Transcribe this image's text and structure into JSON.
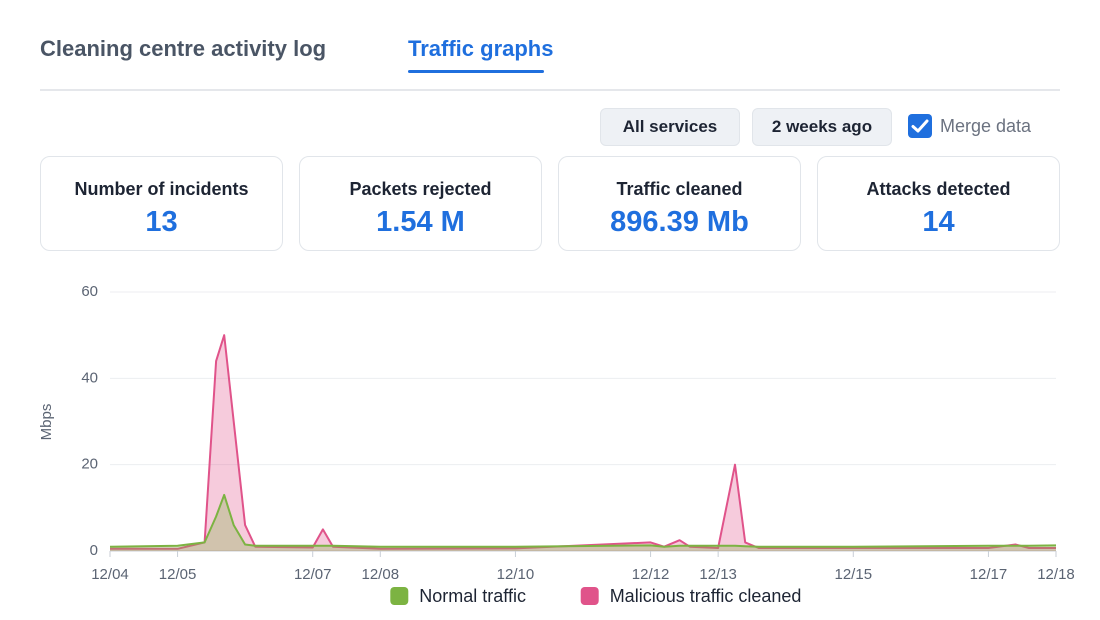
{
  "tabs": [
    "Cleaning centre activity log",
    "Traffic graphs"
  ],
  "filters": {
    "service": "All services",
    "period": "2 weeks ago",
    "merge_data": "Merge data"
  },
  "stats": [
    {
      "label": "Number of incidents",
      "value": "13"
    },
    {
      "label": "Packets rejected",
      "value": "1.54 M"
    },
    {
      "label": "Traffic cleaned",
      "value": "896.39 Mb"
    },
    {
      "label": "Attacks detected",
      "value": "14"
    }
  ],
  "chart_data": {
    "type": "area",
    "y_label": "Mbps",
    "x": [
      0,
      1,
      1.4,
      1.57,
      1.69,
      1.83,
      2,
      2.15,
      3,
      3.15,
      3.3,
      4,
      6,
      8,
      8.2,
      8.43,
      8.58,
      9,
      9.25,
      9.4,
      9.6,
      11,
      13,
      13.4,
      13.6,
      14
    ],
    "series": [
      {
        "name": "Malicious traffic cleaned",
        "color": "#e0538a",
        "values": [
          0.5,
          0.5,
          2,
          44,
          50,
          30,
          6,
          1,
          0.8,
          5,
          1,
          0.5,
          0.6,
          2,
          1,
          2.5,
          1,
          0.7,
          20,
          2,
          0.7,
          0.7,
          0.7,
          1.5,
          0.7,
          0.7
        ]
      },
      {
        "name": "Normal traffic",
        "color": "#7cb342",
        "values": [
          1,
          1.2,
          2,
          8,
          13,
          6,
          1.5,
          1.2,
          1.2,
          1.2,
          1.2,
          1,
          1,
          1.3,
          1,
          1.2,
          1.2,
          1.2,
          1.2,
          1.1,
          1,
          1,
          1.2,
          1.2,
          1.2,
          1.3
        ]
      }
    ],
    "xlim": [
      0,
      14
    ],
    "xticks": [
      {
        "value": 0,
        "label": "12/04"
      },
      {
        "value": 1,
        "label": "12/05"
      },
      {
        "value": 3,
        "label": "12/07"
      },
      {
        "value": 4,
        "label": "12/08"
      },
      {
        "value": 6,
        "label": "12/10"
      },
      {
        "value": 8,
        "label": "12/12"
      },
      {
        "value": 9,
        "label": "12/13"
      },
      {
        "value": 11,
        "label": "12/15"
      },
      {
        "value": 13,
        "label": "12/17"
      },
      {
        "value": 14,
        "label": "12/18"
      }
    ],
    "ylim": [
      0,
      60
    ],
    "yticks": [
      0,
      20,
      40,
      60
    ],
    "grid": true,
    "legend": "bottom"
  }
}
